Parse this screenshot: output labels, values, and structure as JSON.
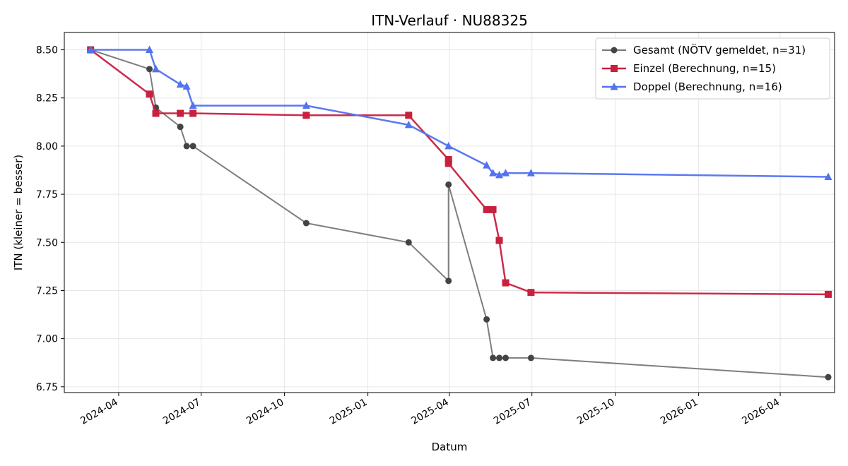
{
  "chart_data": {
    "type": "line",
    "title": "ITN-Verlauf · NU88325",
    "xlabel": "Datum",
    "ylabel": "ITN  (kleiner = besser)",
    "xlim": [
      "2024-02-01",
      "2026-05-31"
    ],
    "ylim": [
      6.72,
      8.59
    ],
    "y_ticks": [
      6.75,
      7.0,
      7.25,
      7.5,
      7.75,
      8.0,
      8.25,
      8.5
    ],
    "y_tick_labels": [
      "6.75",
      "7.00",
      "7.25",
      "7.50",
      "7.75",
      "8.00",
      "8.25",
      "8.50"
    ],
    "x_ticks": [
      "2024-04-01",
      "2024-07-01",
      "2024-10-01",
      "2025-01-01",
      "2025-04-01",
      "2025-07-01",
      "2025-10-01",
      "2026-01-01",
      "2026-04-01"
    ],
    "x_tick_labels": [
      "2024-04",
      "2024-07",
      "2024-10",
      "2025-01",
      "2025-04",
      "2025-07",
      "2025-10",
      "2026-01",
      "2026-04"
    ],
    "grid": true,
    "legend_position": "top-right",
    "series": [
      {
        "name": "Gesamt (NÖTV gemeldet, n=31)",
        "color": "#777777",
        "marker_color": "#444444",
        "marker": "circle",
        "x": [
          "2024-03-01",
          "2024-05-05",
          "2024-05-12",
          "2024-06-08",
          "2024-06-15",
          "2024-06-22",
          "2024-10-25",
          "2025-02-15",
          "2025-03-31",
          "2025-03-31",
          "2025-05-12",
          "2025-05-19",
          "2025-05-26",
          "2025-06-02",
          "2025-06-30",
          "2026-05-24"
        ],
        "y": [
          8.5,
          8.4,
          8.2,
          8.1,
          8.0,
          8.0,
          7.6,
          7.5,
          7.3,
          7.8,
          7.1,
          6.9,
          6.9,
          6.9,
          6.9,
          6.8
        ]
      },
      {
        "name": "Einzel (Berechnung, n=15)",
        "color": "#c8203f",
        "marker_color": "#c8203f",
        "marker": "square",
        "x": [
          "2024-03-01",
          "2024-05-05",
          "2024-05-12",
          "2024-06-08",
          "2024-06-22",
          "2024-10-25",
          "2025-02-15",
          "2025-03-31",
          "2025-03-31",
          "2025-05-12",
          "2025-05-19",
          "2025-05-26",
          "2025-06-02",
          "2025-06-30",
          "2026-05-24"
        ],
        "y": [
          8.5,
          8.27,
          8.17,
          8.17,
          8.17,
          8.16,
          8.16,
          7.93,
          7.91,
          7.67,
          7.67,
          7.51,
          7.29,
          7.24,
          7.23
        ]
      },
      {
        "name": "Doppel (Berechnung, n=16)",
        "color": "#5272f0",
        "marker_color": "#5272f0",
        "marker": "triangle",
        "x": [
          "2024-03-01",
          "2024-05-05",
          "2024-05-12",
          "2024-06-08",
          "2024-06-15",
          "2024-06-22",
          "2024-10-25",
          "2025-02-15",
          "2025-03-31",
          "2025-05-12",
          "2025-05-19",
          "2025-05-26",
          "2025-06-02",
          "2025-06-30",
          "2026-05-24"
        ],
        "y": [
          8.5,
          8.5,
          8.4,
          8.32,
          8.31,
          8.21,
          8.21,
          8.11,
          8.0,
          7.9,
          7.86,
          7.85,
          7.86,
          7.86,
          7.84
        ]
      }
    ]
  }
}
